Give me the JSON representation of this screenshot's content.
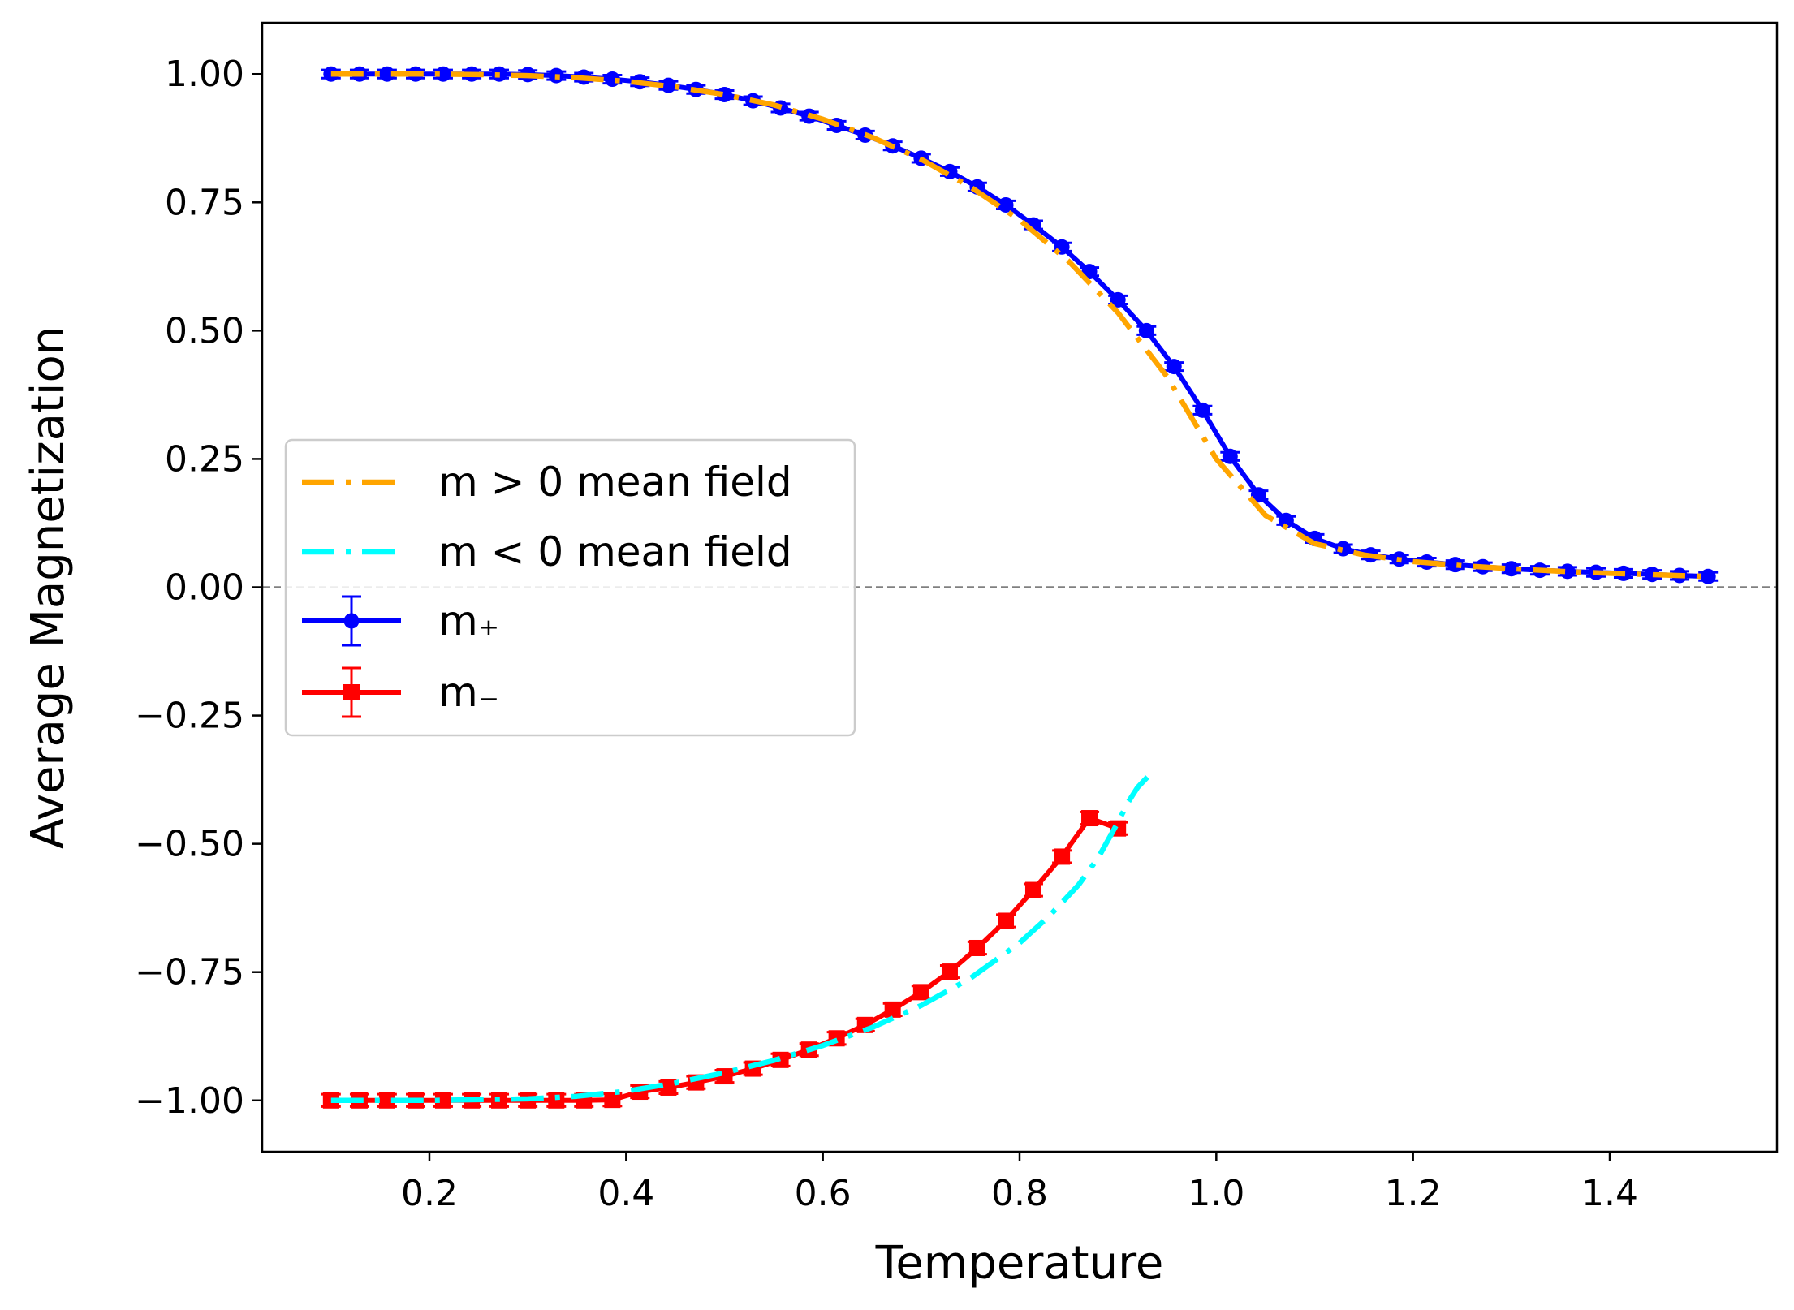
{
  "chart_data": {
    "type": "line",
    "title": "",
    "xlabel": "Temperature",
    "ylabel": "Average Magnetization",
    "xlim": [
      0.03,
      1.57
    ],
    "ylim": [
      -1.1,
      1.1
    ],
    "xticks": [
      0.2,
      0.4,
      0.6,
      0.8,
      1.0,
      1.2,
      1.4
    ],
    "xtick_labels": [
      "0.2",
      "0.4",
      "0.6",
      "0.8",
      "1.0",
      "1.2",
      "1.4"
    ],
    "yticks": [
      1.0,
      0.75,
      0.5,
      0.25,
      0.0,
      -0.25,
      -0.5,
      -0.75,
      -1.0
    ],
    "ytick_labels": [
      "1.00",
      "0.75",
      "0.50",
      "0.25",
      "0.00",
      "−0.25",
      "−0.50",
      "−0.75",
      "−1.00"
    ],
    "grid": false,
    "legend_position": "center-left",
    "reference_line": {
      "y": 0.0,
      "color": "#808080",
      "style": "dashed"
    },
    "series": [
      {
        "name": "m > 0 mean field",
        "kind": "line",
        "style": "dash-dot",
        "color": "#FFA500",
        "x": [
          0.1,
          0.15,
          0.2,
          0.25,
          0.3,
          0.35,
          0.4,
          0.45,
          0.5,
          0.55,
          0.6,
          0.65,
          0.7,
          0.75,
          0.8,
          0.85,
          0.9,
          0.95,
          1.0,
          1.05,
          1.1,
          1.15,
          1.2,
          1.25,
          1.3,
          1.35,
          1.4,
          1.45,
          1.5
        ],
        "y": [
          1.0,
          1.0,
          1.0,
          0.999,
          0.997,
          0.993,
          0.986,
          0.975,
          0.96,
          0.94,
          0.912,
          0.877,
          0.834,
          0.78,
          0.716,
          0.635,
          0.535,
          0.41,
          0.25,
          0.14,
          0.085,
          0.063,
          0.05,
          0.042,
          0.036,
          0.031,
          0.027,
          0.024,
          0.021
        ]
      },
      {
        "name": "m < 0 mean field",
        "kind": "line",
        "style": "dash-dot",
        "color": "#00FFFF",
        "x": [
          0.1,
          0.2,
          0.3,
          0.35,
          0.4,
          0.45,
          0.5,
          0.55,
          0.6,
          0.65,
          0.7,
          0.75,
          0.8,
          0.83,
          0.86,
          0.88,
          0.9,
          0.91,
          0.92,
          0.93
        ],
        "y": [
          -1.0,
          -1.0,
          -0.997,
          -0.992,
          -0.982,
          -0.966,
          -0.946,
          -0.922,
          -0.893,
          -0.858,
          -0.815,
          -0.762,
          -0.693,
          -0.641,
          -0.58,
          -0.527,
          -0.458,
          -0.42,
          -0.39,
          -0.37
        ]
      },
      {
        "name": "m₊",
        "kind": "errorbar",
        "marker": "circle",
        "color": "#0000FF",
        "x": [
          0.1,
          0.129,
          0.157,
          0.186,
          0.214,
          0.243,
          0.271,
          0.3,
          0.329,
          0.357,
          0.386,
          0.414,
          0.443,
          0.471,
          0.5,
          0.529,
          0.557,
          0.586,
          0.614,
          0.643,
          0.671,
          0.7,
          0.729,
          0.757,
          0.786,
          0.814,
          0.843,
          0.871,
          0.9,
          0.929,
          0.957,
          0.986,
          1.014,
          1.043,
          1.071,
          1.1,
          1.129,
          1.157,
          1.186,
          1.214,
          1.243,
          1.271,
          1.3,
          1.329,
          1.357,
          1.386,
          1.414,
          1.443,
          1.471,
          1.5
        ],
        "y": [
          1.0,
          1.0,
          1.0,
          1.0,
          1.0,
          1.0,
          1.0,
          0.999,
          0.997,
          0.994,
          0.99,
          0.985,
          0.978,
          0.97,
          0.96,
          0.948,
          0.934,
          0.918,
          0.9,
          0.881,
          0.86,
          0.836,
          0.81,
          0.78,
          0.745,
          0.706,
          0.663,
          0.615,
          0.56,
          0.5,
          0.43,
          0.345,
          0.255,
          0.18,
          0.13,
          0.095,
          0.075,
          0.063,
          0.055,
          0.049,
          0.044,
          0.04,
          0.036,
          0.033,
          0.031,
          0.029,
          0.027,
          0.025,
          0.023,
          0.021
        ],
        "yerr": 0.008
      },
      {
        "name": "m₋",
        "kind": "errorbar",
        "marker": "square",
        "color": "#FF0000",
        "x": [
          0.1,
          0.129,
          0.157,
          0.186,
          0.214,
          0.243,
          0.271,
          0.3,
          0.329,
          0.357,
          0.386,
          0.414,
          0.443,
          0.471,
          0.5,
          0.529,
          0.557,
          0.586,
          0.614,
          0.643,
          0.671,
          0.7,
          0.729,
          0.757,
          0.786,
          0.814,
          0.843,
          0.871,
          0.9
        ],
        "y": [
          -1.0,
          -1.0,
          -1.0,
          -1.0,
          -1.0,
          -1.0,
          -1.0,
          -1.0,
          -1.0,
          -1.0,
          -0.999,
          -0.983,
          -0.975,
          -0.965,
          -0.953,
          -0.938,
          -0.921,
          -0.901,
          -0.879,
          -0.853,
          -0.823,
          -0.789,
          -0.749,
          -0.703,
          -0.65,
          -0.59,
          -0.525,
          -0.45,
          -0.47
        ],
        "yerr": 0.012
      }
    ]
  }
}
